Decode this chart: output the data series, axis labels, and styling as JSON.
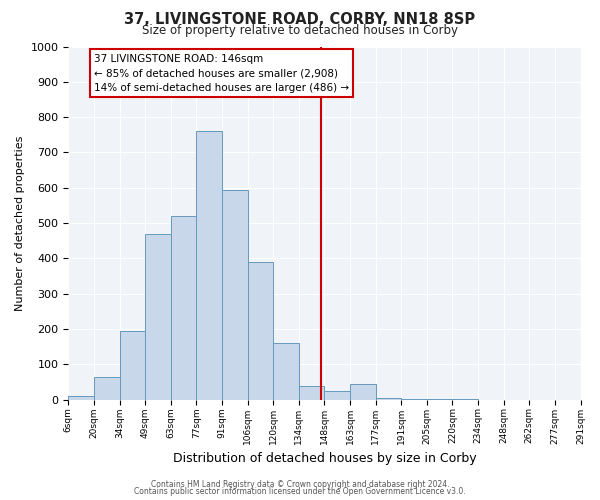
{
  "title": "37, LIVINGSTONE ROAD, CORBY, NN18 8SP",
  "subtitle": "Size of property relative to detached houses in Corby",
  "xlabel": "Distribution of detached houses by size in Corby",
  "ylabel": "Number of detached properties",
  "bin_labels": [
    "6sqm",
    "20sqm",
    "34sqm",
    "49sqm",
    "63sqm",
    "77sqm",
    "91sqm",
    "106sqm",
    "120sqm",
    "134sqm",
    "148sqm",
    "163sqm",
    "177sqm",
    "191sqm",
    "205sqm",
    "220sqm",
    "234sqm",
    "248sqm",
    "262sqm",
    "277sqm",
    "291sqm"
  ],
  "bar_values": [
    10,
    65,
    195,
    470,
    520,
    760,
    595,
    390,
    160,
    40,
    25,
    45,
    5,
    3,
    2,
    1,
    0,
    0,
    0,
    0
  ],
  "bar_color": "#c8d8ea",
  "bar_edge_color": "#6699bb",
  "vline_color": "#cc0000",
  "annotation_text": "37 LIVINGSTONE ROAD: 146sqm\n← 85% of detached houses are smaller (2,908)\n14% of semi-detached houses are larger (486) →",
  "annotation_box_color": "#ffffff",
  "annotation_box_edge": "#cc0000",
  "ylim": [
    0,
    1000
  ],
  "yticks": [
    0,
    100,
    200,
    300,
    400,
    500,
    600,
    700,
    800,
    900,
    1000
  ],
  "footer1": "Contains HM Land Registry data © Crown copyright and database right 2024.",
  "footer2": "Contains public sector information licensed under the Open Government Licence v3.0.",
  "bg_color": "#ffffff",
  "plot_bg_color": "#f0f4f8",
  "grid_color": "#d0d8e0"
}
